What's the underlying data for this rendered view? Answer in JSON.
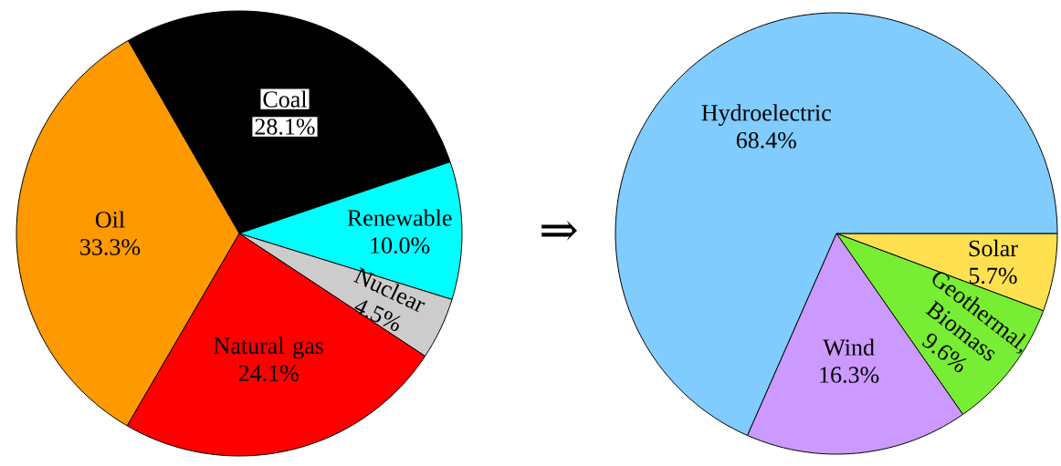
{
  "chart_data": [
    {
      "type": "pie",
      "categories": [
        "Coal",
        "Renewable",
        "Nuclear",
        "Natural gas",
        "Oil"
      ],
      "values": [
        28.1,
        10.0,
        4.5,
        24.1,
        33.3
      ],
      "value_labels": [
        "28.1%",
        "10.0%",
        "4.5%",
        "24.1%",
        "33.3%"
      ],
      "colors": [
        "#000000",
        "#00ffff",
        "#cccccc",
        "#ff0000",
        "#ff9900"
      ],
      "annotations": [
        "⇒"
      ]
    },
    {
      "type": "pie",
      "categories": [
        "Solar",
        "Geothermal, Biomass",
        "Wind",
        "Hydroelectric"
      ],
      "values": [
        5.7,
        9.6,
        16.3,
        68.4
      ],
      "value_labels": [
        "5.7%",
        "9.6%",
        "16.3%",
        "68.4%"
      ],
      "colors": [
        "#ffe050",
        "#77ee33",
        "#cc99ff",
        "#80ccff"
      ]
    }
  ]
}
